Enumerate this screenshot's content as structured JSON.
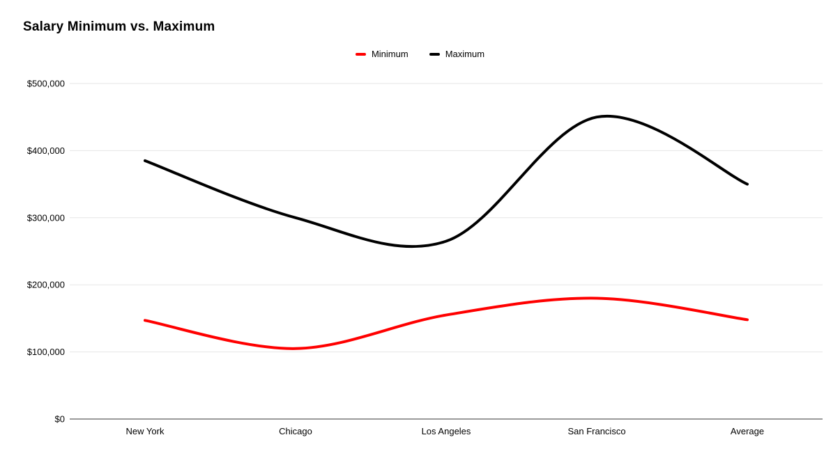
{
  "chart_data": {
    "type": "line",
    "smooth": true,
    "title": "Salary Minimum vs. Maximum",
    "categories": [
      "New York",
      "Chicago",
      "Los Angeles",
      "San Francisco",
      "Average"
    ],
    "series": [
      {
        "name": "Minimum",
        "color": "#ff0000",
        "values": [
          147000,
          105000,
          155000,
          180000,
          148000
        ]
      },
      {
        "name": "Maximum",
        "color": "#000000",
        "values": [
          385000,
          300000,
          265000,
          450000,
          350000
        ]
      }
    ],
    "xlabel": "",
    "ylabel": "",
    "ylim": [
      0,
      500000
    ],
    "ytick_step": 100000,
    "ytick_labels": [
      "$0",
      "$100,000",
      "$200,000",
      "$300,000",
      "$400,000",
      "$500,000"
    ],
    "grid": true,
    "legend_position": "top"
  },
  "colors": {
    "grid": "#e6e6e6",
    "axis": "#333333",
    "text": "#000000",
    "background": "#ffffff"
  }
}
